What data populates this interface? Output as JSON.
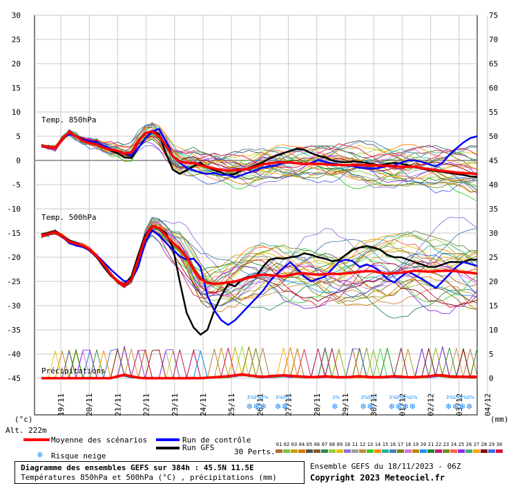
{
  "chart_data": {
    "type": "line",
    "dates": [
      "19/11",
      "20/11",
      "21/11",
      "22/11",
      "23/11",
      "24/11",
      "25/11",
      "26/11",
      "27/11",
      "28/11",
      "29/11",
      "30/11",
      "01/12",
      "02/12",
      "03/12",
      "04/12"
    ],
    "left_ticks": [
      30,
      25,
      20,
      15,
      10,
      5,
      0,
      -5,
      -10,
      -15,
      -20,
      -25,
      -30,
      -35,
      -40,
      -45
    ],
    "right_ticks": [
      75,
      70,
      65,
      60,
      55,
      50,
      45,
      40,
      35,
      30,
      25,
      20,
      15,
      10,
      5,
      0
    ],
    "left_unit": "(°c)",
    "right_unit": "(mm)",
    "alt_label": "Alt. 222m",
    "ylim_left": [
      -45,
      30
    ],
    "ylim_right": [
      0,
      75
    ],
    "hours_step": 6,
    "panels": {
      "t850_label": "Temp. 850hPa",
      "t500_label": "Temp. 500hPa",
      "precip_label": "Précipitations"
    },
    "t850_mean": [
      3.0,
      2.8,
      2.5,
      4.5,
      5.8,
      5.0,
      4.0,
      3.6,
      3.3,
      2.6,
      2.2,
      2.0,
      1.4,
      1.6,
      4.0,
      5.6,
      6.0,
      5.0,
      3.0,
      0.9,
      -0.3,
      -0.5,
      -0.5,
      -1.0,
      -1.4,
      -1.7,
      -2.0,
      -2.1,
      -2.0,
      -1.9,
      -1.7,
      -1.3,
      -0.8,
      -0.6,
      -0.4,
      -0.4,
      -0.4,
      -0.6,
      -0.7,
      -0.7,
      -0.7,
      -0.8,
      -0.9,
      -0.9,
      -1.0,
      -1.0,
      -1.0,
      -1.0,
      -1.0,
      -1.1,
      -1.1,
      -1.2,
      -1.3,
      -1.3,
      -1.3,
      -1.6,
      -1.8,
      -2.0,
      -2.2,
      -2.3,
      -2.5,
      -2.6,
      -2.7,
      -2.8
    ],
    "t850_control": [
      3.0,
      2.7,
      2.5,
      4.5,
      5.4,
      5.0,
      4.3,
      4.0,
      3.8,
      3.0,
      2.4,
      1.9,
      1.4,
      1.0,
      2.5,
      4.5,
      6.0,
      6.5,
      4.0,
      1.0,
      -0.5,
      -1.5,
      -2.0,
      -2.5,
      -2.8,
      -2.6,
      -3.0,
      -3.0,
      -3.5,
      -3.0,
      -2.5,
      -2.0,
      -1.5,
      -1.2,
      -1.0,
      -0.5,
      -0.5,
      -0.6,
      -0.8,
      -0.6,
      0.1,
      -0.3,
      -0.6,
      -0.8,
      -1.0,
      -1.2,
      -1.5,
      -1.6,
      -1.7,
      -1.5,
      -1.2,
      -1.0,
      -0.5,
      0.0,
      0.0,
      -0.3,
      -0.8,
      -1.2,
      -0.5,
      1.2,
      2.5,
      3.7,
      4.6,
      5.0
    ],
    "t850_gfs": [
      3.0,
      2.9,
      2.6,
      4.4,
      5.5,
      5.1,
      4.2,
      3.8,
      3.5,
      2.6,
      2.0,
      1.5,
      0.6,
      0.5,
      2.5,
      4.6,
      5.9,
      5.5,
      1.4,
      -1.9,
      -2.8,
      -2.0,
      -1.2,
      -0.5,
      -1.5,
      -2.0,
      -2.5,
      -3.0,
      -2.8,
      -2.0,
      -1.6,
      -1.0,
      -0.4,
      0.4,
      1.0,
      1.5,
      2.0,
      2.4,
      2.2,
      1.5,
      1.0,
      0.6,
      0.0,
      -0.3,
      -0.4,
      -0.2,
      -0.3,
      -0.5,
      -0.8,
      -1.0,
      -0.7,
      -0.5,
      -0.7,
      -1.0,
      -1.4,
      -1.7,
      -2.0,
      -2.2,
      -2.4,
      -2.6,
      -2.8,
      -3.0,
      -3.3,
      -3.4
    ],
    "t500_mean": [
      -15.5,
      -15.2,
      -14.8,
      -15.6,
      -16.8,
      -17.2,
      -17.6,
      -18.4,
      -19.8,
      -21.5,
      -23.5,
      -25.0,
      -25.8,
      -24.6,
      -20.5,
      -16.0,
      -13.6,
      -14.0,
      -15.5,
      -17.0,
      -18.2,
      -20.0,
      -22.5,
      -24.5,
      -25.3,
      -25.5,
      -25.4,
      -25.2,
      -25.0,
      -24.6,
      -24.2,
      -23.8,
      -23.6,
      -23.7,
      -23.8,
      -24.0,
      -23.7,
      -23.4,
      -23.3,
      -23.5,
      -23.6,
      -23.5,
      -23.4,
      -23.5,
      -23.3,
      -23.2,
      -23.0,
      -22.9,
      -22.9,
      -23.2,
      -23.4,
      -23.3,
      -23.2,
      -23.0,
      -22.8,
      -22.9,
      -23.0,
      -22.9,
      -22.8,
      -22.8,
      -22.9,
      -23.1,
      -23.2,
      -23.4
    ],
    "t500_control": [
      -15.4,
      -15.1,
      -14.7,
      -15.8,
      -17.0,
      -17.6,
      -17.9,
      -18.6,
      -19.6,
      -21.0,
      -22.5,
      -23.8,
      -25.0,
      -24.8,
      -22.0,
      -17.0,
      -14.5,
      -15.5,
      -17.0,
      -18.5,
      -19.8,
      -20.5,
      -20.3,
      -22.0,
      -28.0,
      -31.0,
      -33.0,
      -34.0,
      -33.0,
      -31.5,
      -30.0,
      -28.5,
      -27.0,
      -25.0,
      -23.5,
      -22.2,
      -21.0,
      -22.5,
      -24.0,
      -25.0,
      -24.5,
      -24.0,
      -22.5,
      -21.0,
      -20.5,
      -20.8,
      -22.0,
      -21.5,
      -22.0,
      -23.0,
      -24.5,
      -25.2,
      -24.0,
      -23.0,
      -23.7,
      -24.5,
      -25.4,
      -26.4,
      -25.0,
      -23.5,
      -22.0,
      -21.0,
      -21.4,
      -21.8
    ],
    "t500_gfs": [
      -15.3,
      -15.0,
      -14.6,
      -15.5,
      -16.5,
      -17.0,
      -17.6,
      -18.5,
      -20.0,
      -22.0,
      -23.8,
      -25.0,
      -25.6,
      -24.0,
      -19.5,
      -15.5,
      -13.5,
      -14.0,
      -15.0,
      -18.0,
      -25.0,
      -31.5,
      -34.5,
      -36.0,
      -35.0,
      -31.0,
      -28.0,
      -25.5,
      -26.0,
      -24.5,
      -24.0,
      -24.0,
      -22.0,
      -20.5,
      -20.2,
      -20.3,
      -20.0,
      -19.8,
      -19.2,
      -19.5,
      -20.0,
      -20.3,
      -20.8,
      -20.6,
      -19.5,
      -18.5,
      -18.0,
      -17.7,
      -18.0,
      -18.5,
      -19.5,
      -20.0,
      -20.0,
      -20.5,
      -21.0,
      -21.5,
      -22.0,
      -22.0,
      -21.5,
      -21.0,
      -21.0,
      -21.0,
      -20.5,
      -20.5
    ],
    "precip_mean": [
      0.0,
      0.0,
      0.0,
      0.0,
      0.0,
      0.0,
      0.0,
      0.0,
      0.0,
      0.0,
      0.0,
      0.4,
      0.7,
      0.4,
      0.1,
      0.0,
      0.0,
      0.0,
      0.0,
      0.0,
      0.0,
      0.0,
      0.0,
      0.0,
      0.1,
      0.2,
      0.3,
      0.4,
      0.6,
      0.8,
      0.6,
      0.4,
      0.3,
      0.4,
      0.5,
      0.6,
      0.5,
      0.4,
      0.3,
      0.2,
      0.3,
      0.4,
      0.3,
      0.2,
      0.2,
      0.3,
      0.4,
      0.3,
      0.2,
      0.2,
      0.3,
      0.4,
      0.3,
      0.2,
      0.2,
      0.3,
      0.4,
      0.6,
      0.6,
      0.4,
      0.3,
      0.3,
      0.3,
      0.3
    ],
    "members": 30,
    "snow_dates": [
      "26/11",
      "27/11",
      "29/11",
      "30/11",
      "01/12",
      "03/12"
    ],
    "snow_symbols_per_date": [
      3,
      2,
      1,
      2,
      4,
      4
    ],
    "snow_risk_label": "3%"
  },
  "legend": {
    "mean_label": "Moyenne des scénarios",
    "control_label": "Run de contrôle",
    "gfs_label": "Run GFS",
    "snow_label": "Risque neige",
    "perts_label": "30 Perts.",
    "pert_numbers": [
      "01",
      "02",
      "03",
      "04",
      "05",
      "06",
      "07",
      "08",
      "09",
      "10",
      "11",
      "12",
      "13",
      "14",
      "15",
      "16",
      "17",
      "18",
      "19",
      "20",
      "21",
      "22",
      "23",
      "24",
      "25",
      "26",
      "27",
      "28",
      "29",
      "30"
    ],
    "pert_colors": [
      "#b06a2c",
      "#7fbf3f",
      "#c8a000",
      "#d47a00",
      "#505050",
      "#8b5a2b",
      "#2e8b57",
      "#9acd32",
      "#e0c000",
      "#9370db",
      "#a0a0a0",
      "#cd853f",
      "#32cd32",
      "#ff8c00",
      "#20b2aa",
      "#4682b4",
      "#808000",
      "#da70d6",
      "#b8860b",
      "#1e90ff",
      "#228b22",
      "#c71585",
      "#6b8e23",
      "#ff6347",
      "#8a2be2",
      "#3cb371",
      "#ffa500",
      "#8b0000",
      "#4169e1",
      "#dc143c"
    ],
    "mean_color": "#ff0000",
    "control_color": "#0000ff",
    "gfs_color": "#000000",
    "snow_color": "#1e90ff"
  },
  "footer": {
    "title_line1": "Diagramme des ensembles GEFS sur 384h : 45.5N 11.5E",
    "title_line2": "Températures 850hPa et 500hPa (°C) , précipitations (mm)",
    "ensemble_line": "Ensemble GEFS du 18/11/2023 - 06Z",
    "copyright_line": "Copyright 2023 Meteociel.fr"
  }
}
